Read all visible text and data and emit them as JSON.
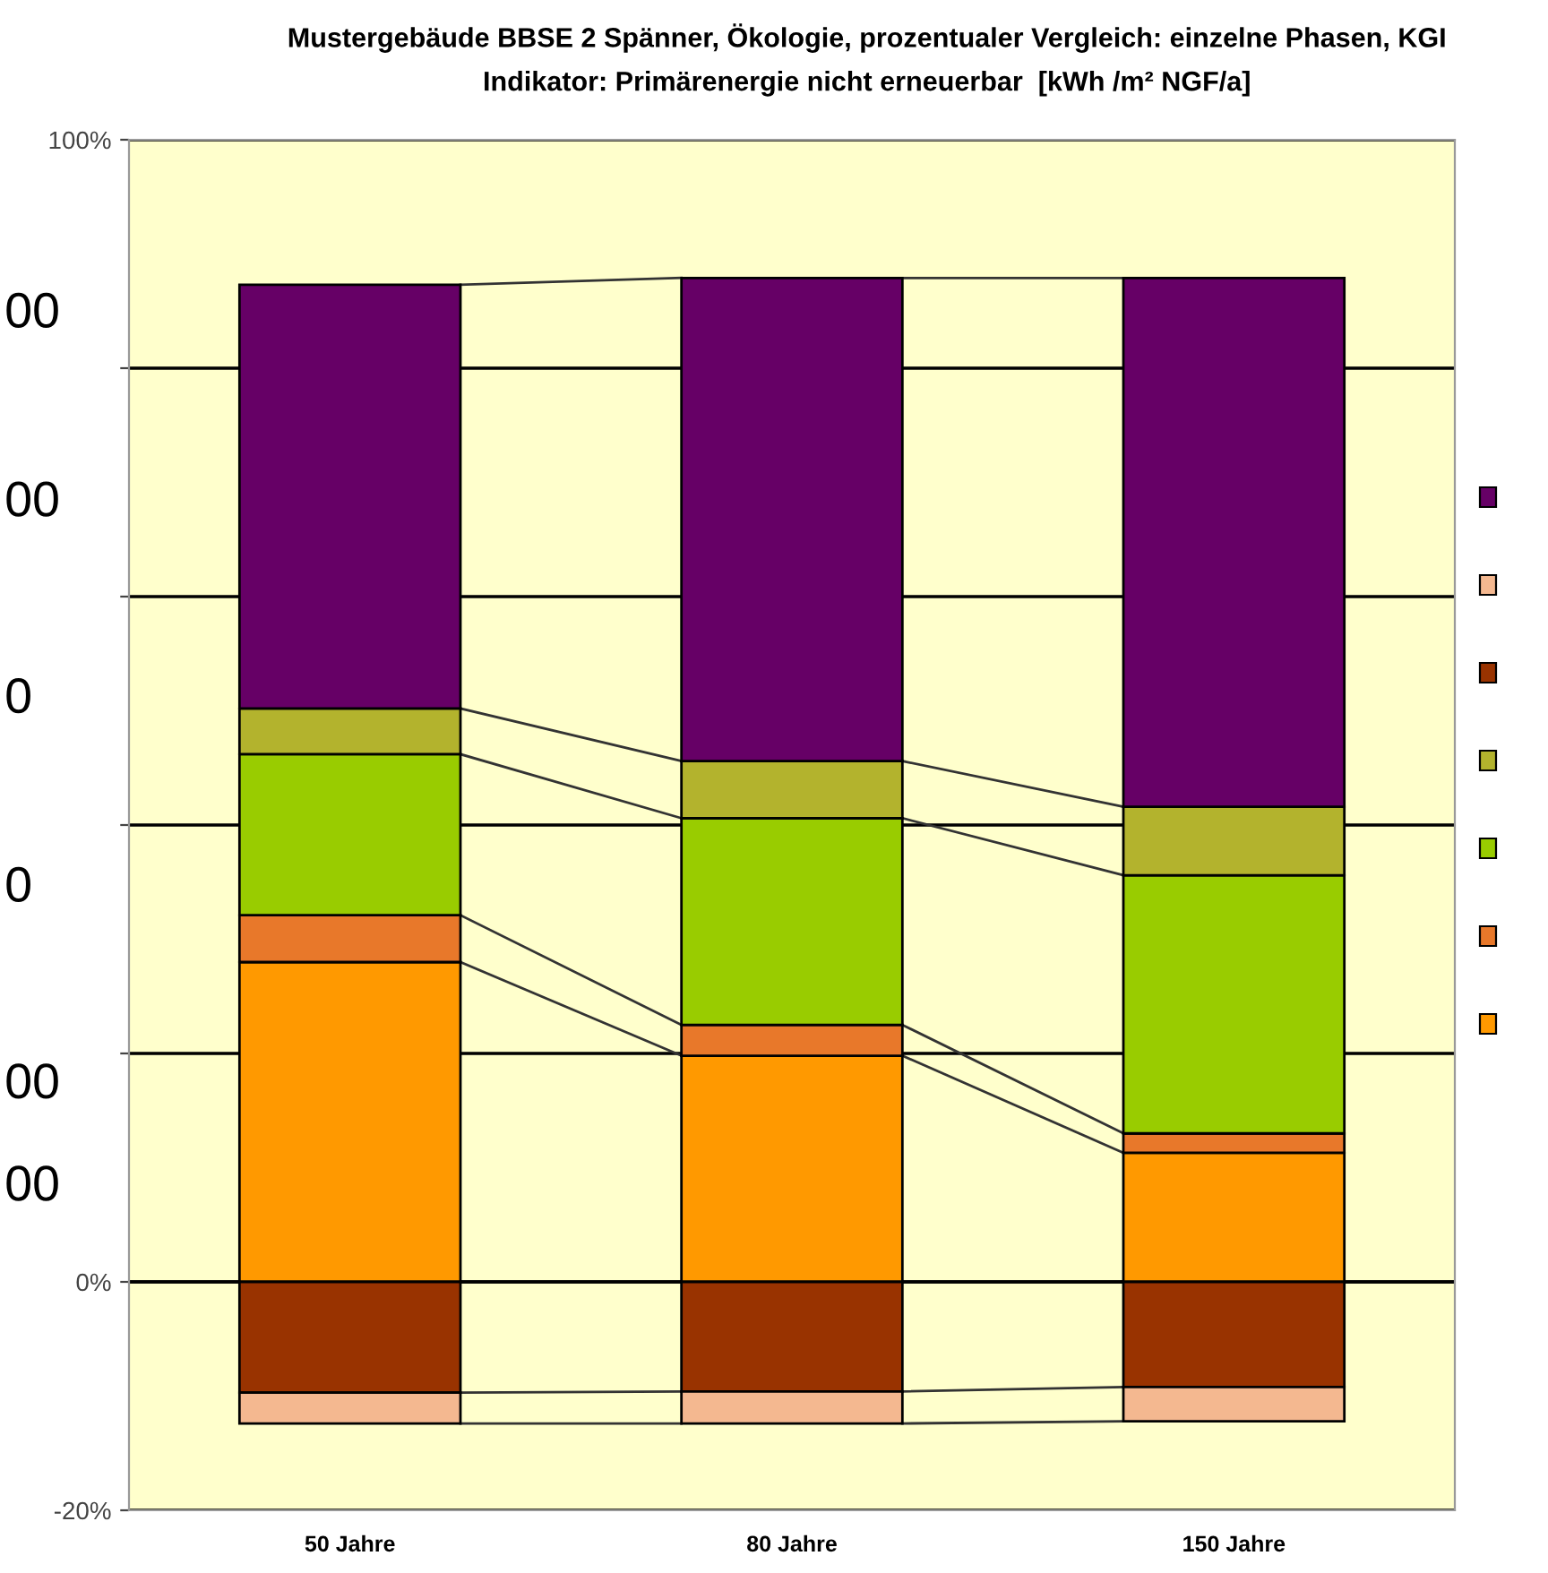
{
  "chart_data": {
    "type": "bar",
    "stacked": true,
    "title": "Mustergebäude BBSE 2 Spänner, Ökologie, prozentualer Vergleich: einzelne Phasen, KGI",
    "subtitle": "Indikator: Primärenergie nicht erneuerbar  [kWh /m² NGF/a]",
    "categories": [
      "50 Jahre",
      "80 Jahre",
      "150 Jahre"
    ],
    "series": [
      {
        "color": "#ff9900",
        "values": [
          28.0,
          19.8,
          11.3
        ]
      },
      {
        "color": "#e8782a",
        "values": [
          4.1,
          2.7,
          1.7
        ]
      },
      {
        "color": "#99cc00",
        "values": [
          14.1,
          18.1,
          22.6
        ]
      },
      {
        "color": "#b3b32d",
        "values": [
          4.0,
          5.0,
          6.0
        ]
      },
      {
        "color": "#993300",
        "values": [
          -9.7,
          -9.6,
          -9.2
        ]
      },
      {
        "color": "#f4b890",
        "values": [
          -2.7,
          -2.8,
          -3.0
        ]
      },
      {
        "color": "#660066",
        "values": [
          37.1,
          42.3,
          46.3
        ]
      }
    ],
    "ylim": [
      -20,
      100
    ],
    "yticks": [
      {
        "value": -20,
        "label": "-20%"
      },
      {
        "value": 0,
        "label": "0%"
      },
      {
        "value": 20,
        "label": null
      },
      {
        "value": 40,
        "label": null
      },
      {
        "value": 60,
        "label": null
      },
      {
        "value": 80,
        "label": null
      },
      {
        "value": 100,
        "label": "100%"
      }
    ],
    "grid": "y",
    "annotations": [
      "00",
      "00",
      "0",
      "0",
      "00",
      "00"
    ]
  }
}
